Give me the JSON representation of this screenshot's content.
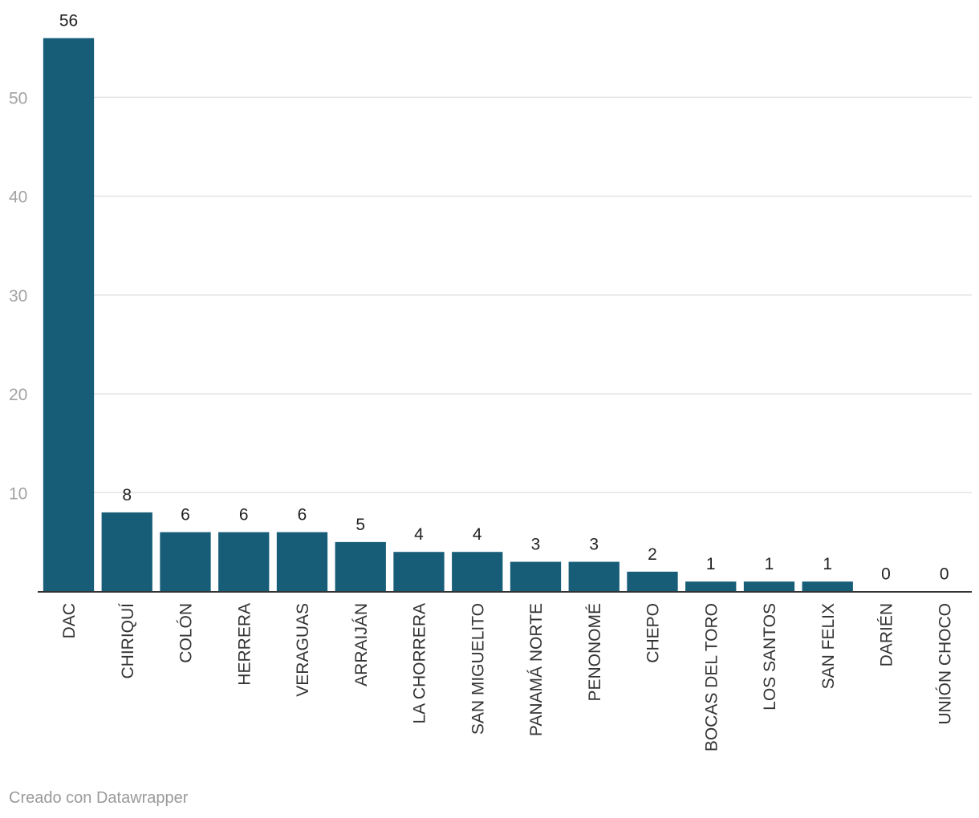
{
  "chart_data": {
    "type": "bar",
    "categories": [
      "DAC",
      "CHIRIQUÍ",
      "COLÓN",
      "HERRERA",
      "VERAGUAS",
      "ARRAIJÁN",
      "LA CHORRERA",
      "SAN MIGUELITO",
      "PANAMÁ NORTE",
      "PENONOMÉ",
      "CHEPO",
      "BOCAS DEL TORO",
      "LOS SANTOS",
      "SAN FELIX",
      "DARIÉN",
      "UNIÓN CHOCO"
    ],
    "values": [
      56,
      8,
      6,
      6,
      6,
      5,
      4,
      4,
      3,
      3,
      2,
      1,
      1,
      1,
      0,
      0
    ],
    "ylim": [
      0,
      56
    ],
    "yticks": [
      10,
      20,
      30,
      40,
      50
    ],
    "grid": true,
    "bar_color": "#175d78",
    "data_labels": true
  },
  "footer": {
    "credit": "Creado con Datawrapper"
  }
}
